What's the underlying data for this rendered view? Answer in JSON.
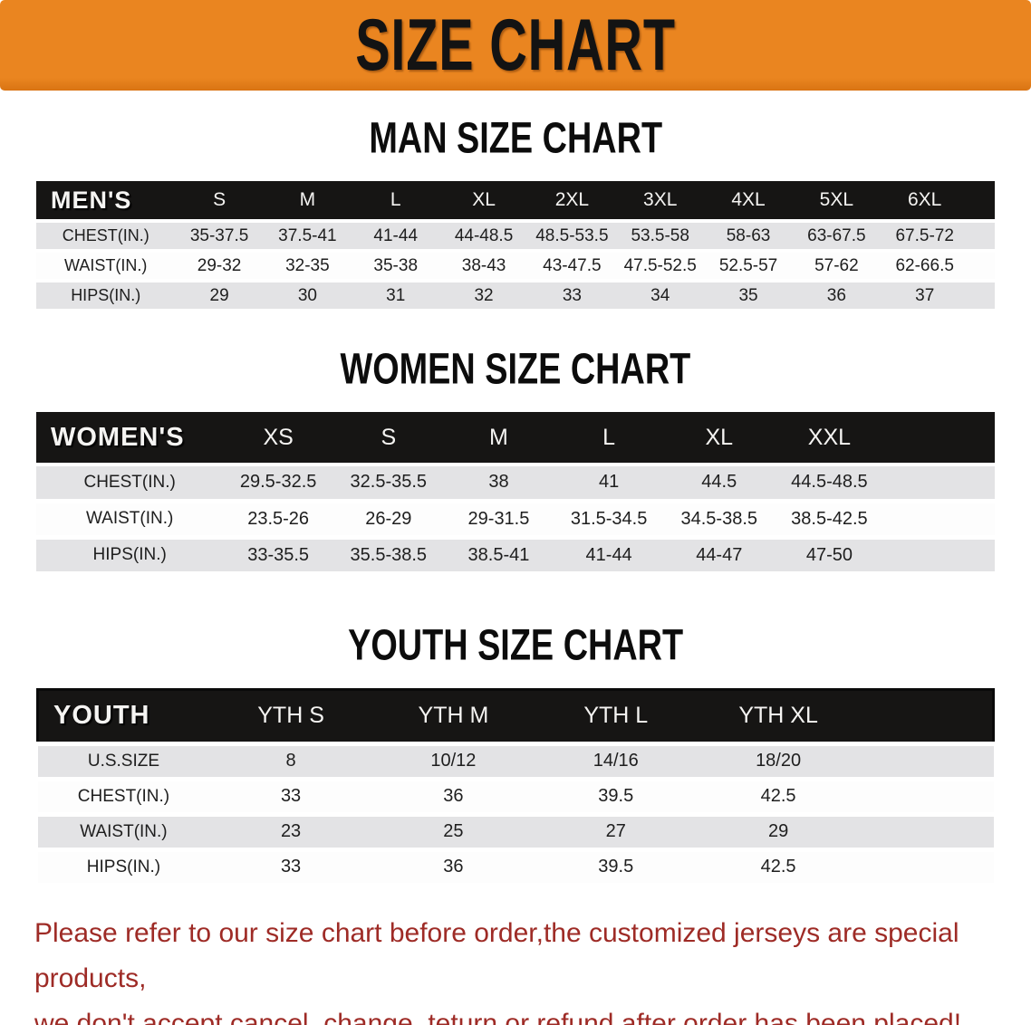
{
  "banner": {
    "title": "SIZE CHART",
    "bg_color": "#EA8520",
    "text_color": "#131313"
  },
  "sections": {
    "men": {
      "title": "MAN SIZE CHART",
      "header_label": "MEN'S",
      "sizes": [
        "S",
        "M",
        "L",
        "XL",
        "2XL",
        "3XL",
        "4XL",
        "5XL",
        "6XL"
      ],
      "rows": [
        {
          "label": "CHEST(IN.)",
          "values": [
            "35-37.5",
            "37.5-41",
            "41-44",
            "44-48.5",
            "48.5-53.5",
            "53.5-58",
            "58-63",
            "63-67.5",
            "67.5-72"
          ]
        },
        {
          "label": "WAIST(IN.)",
          "values": [
            "29-32",
            "32-35",
            "35-38",
            "38-43",
            "43-47.5",
            "47.5-52.5",
            "52.5-57",
            "57-62",
            "62-66.5"
          ]
        },
        {
          "label": "HIPS(IN.)",
          "values": [
            "29",
            "30",
            "31",
            "32",
            "33",
            "34",
            "35",
            "36",
            "37"
          ]
        }
      ]
    },
    "women": {
      "title": "WOMEN SIZE CHART",
      "header_label": "WOMEN'S",
      "sizes": [
        "XS",
        "S",
        "M",
        "L",
        "XL",
        "XXL"
      ],
      "rows": [
        {
          "label": "CHEST(IN.)",
          "values": [
            "29.5-32.5",
            "32.5-35.5",
            "38",
            "41",
            "44.5",
            "44.5-48.5"
          ]
        },
        {
          "label": "WAIST(IN.)",
          "values": [
            "23.5-26",
            "26-29",
            "29-31.5",
            "31.5-34.5",
            "34.5-38.5",
            "38.5-42.5"
          ]
        },
        {
          "label": "HIPS(IN.)",
          "values": [
            "33-35.5",
            "35.5-38.5",
            "38.5-41",
            "41-44",
            "44-47",
            "47-50"
          ]
        }
      ]
    },
    "youth": {
      "title": "YOUTH SIZE CHART",
      "header_label": "YOUTH",
      "sizes": [
        "YTH S",
        "YTH M",
        "YTH L",
        "YTH XL"
      ],
      "rows": [
        {
          "label": "U.S.SIZE",
          "values": [
            "8",
            "10/12",
            "14/16",
            "18/20"
          ]
        },
        {
          "label": "CHEST(IN.)",
          "values": [
            "33",
            "36",
            "39.5",
            "42.5"
          ]
        },
        {
          "label": "WAIST(IN.)",
          "values": [
            "23",
            "25",
            "27",
            "29"
          ]
        },
        {
          "label": "HIPS(IN.)",
          "values": [
            "33",
            "36",
            "39.5",
            "42.5"
          ]
        }
      ]
    }
  },
  "disclaimer": {
    "line1": "Please refer to our size chart before order,the customized jerseys are special products,",
    "line2": "we don't accept cancel, change, teturn or refund after order has been placed!",
    "color": "#9E2B26"
  }
}
